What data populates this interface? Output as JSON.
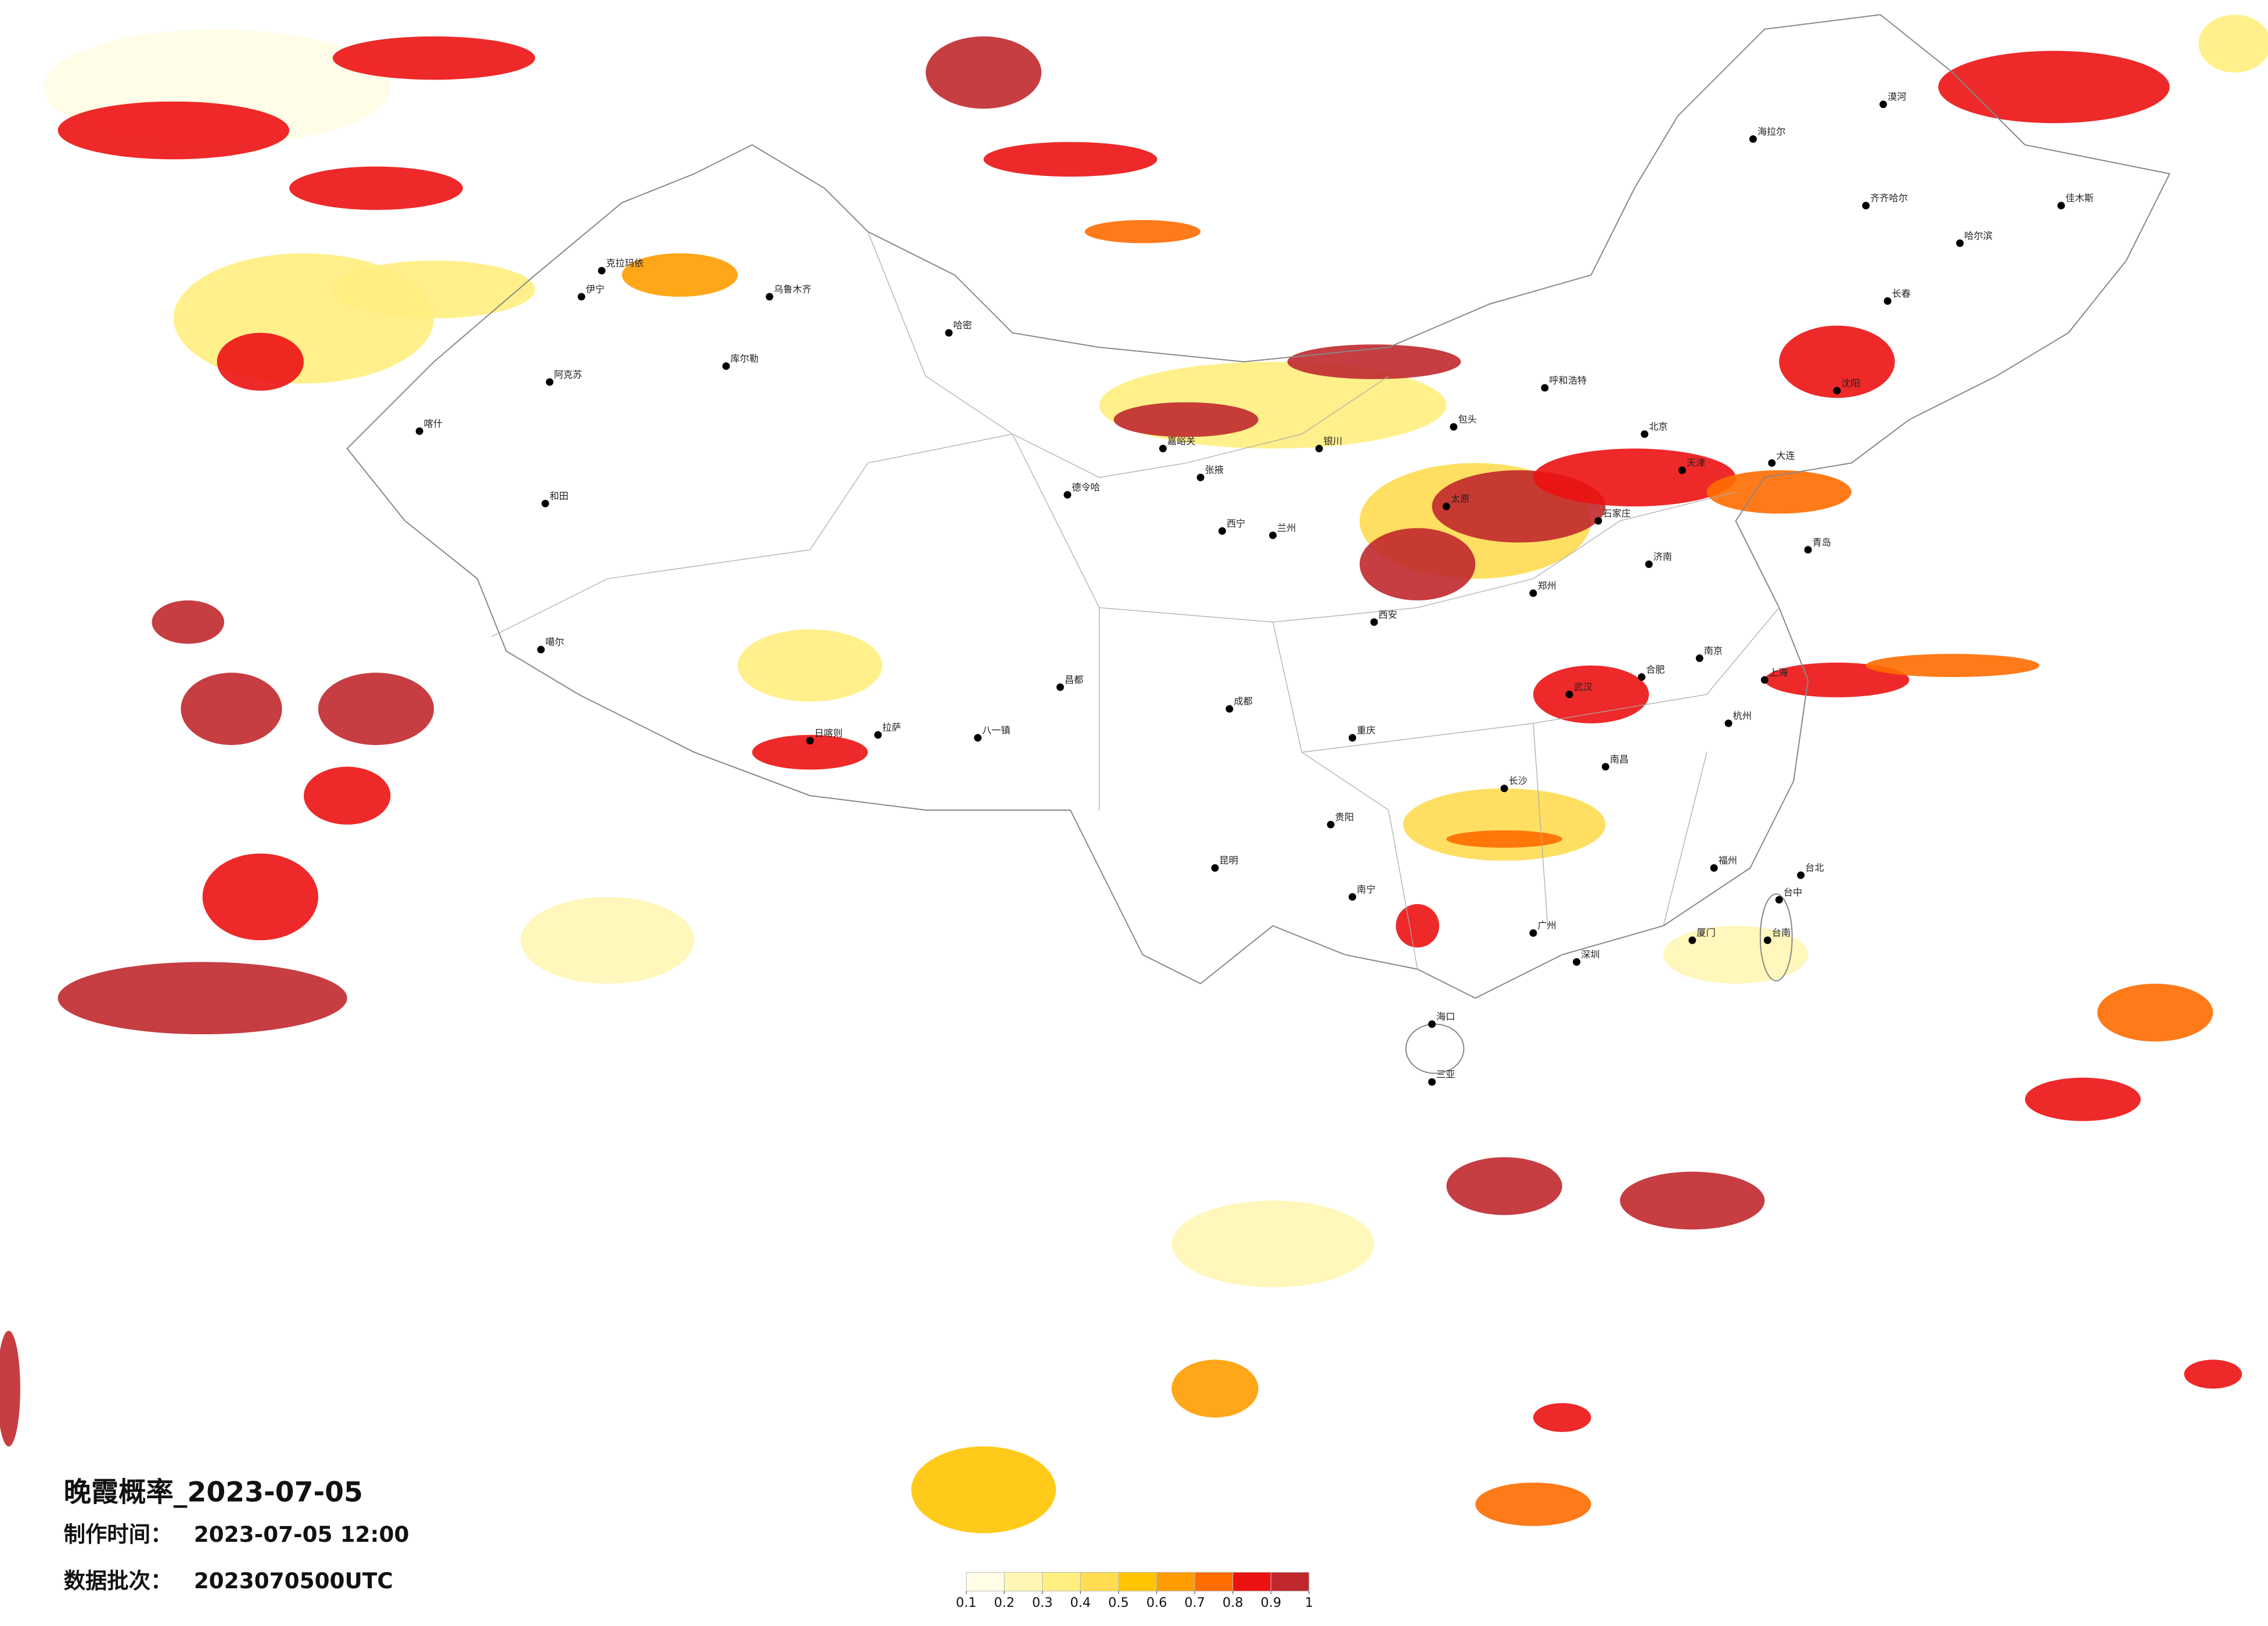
{
  "header": {
    "title": "晚霞概率_2023-07-05",
    "made_label": "制作时间：",
    "made_time": "2023-07-05 12:00",
    "batch_label": "数据批次：",
    "batch": "2023070500UTC"
  },
  "legend": {
    "ticks": [
      0.1,
      0.2,
      0.3,
      0.4,
      0.5,
      0.6,
      0.7,
      0.8,
      0.9,
      1
    ],
    "colors": [
      "#fffde6",
      "#fff6b4",
      "#ffee80",
      "#ffdc50",
      "#ffc400",
      "#ff9c00",
      "#ff6c00",
      "#ec1212",
      "#c0282d"
    ]
  },
  "cities": [
    "喀什",
    "和田",
    "阿克苏",
    "伊宁",
    "克拉玛依",
    "乌鲁木齐",
    "库尔勒",
    "哈密",
    "噶尔",
    "拉萨",
    "日喀则",
    "八一镇",
    "昌都",
    "德令哈",
    "嘉峪关",
    "张掖",
    "西宁",
    "兰州",
    "银川",
    "呼和浩特",
    "包头",
    "北京",
    "天津",
    "石家庄",
    "太原",
    "济南",
    "郑州",
    "西安",
    "成都",
    "重庆",
    "武汉",
    "合肥",
    "南京",
    "上海",
    "杭州",
    "长沙",
    "南昌",
    "福州",
    "贵阳",
    "昆明",
    "南宁",
    "广州",
    "深圳",
    "海口",
    "三亚",
    "台北",
    "台中",
    "台南",
    "沈阳",
    "长春",
    "哈尔滨",
    "齐齐哈尔",
    "海拉尔",
    "漠河",
    "佳木斯",
    "大连",
    "青岛",
    "厦门"
  ]
}
